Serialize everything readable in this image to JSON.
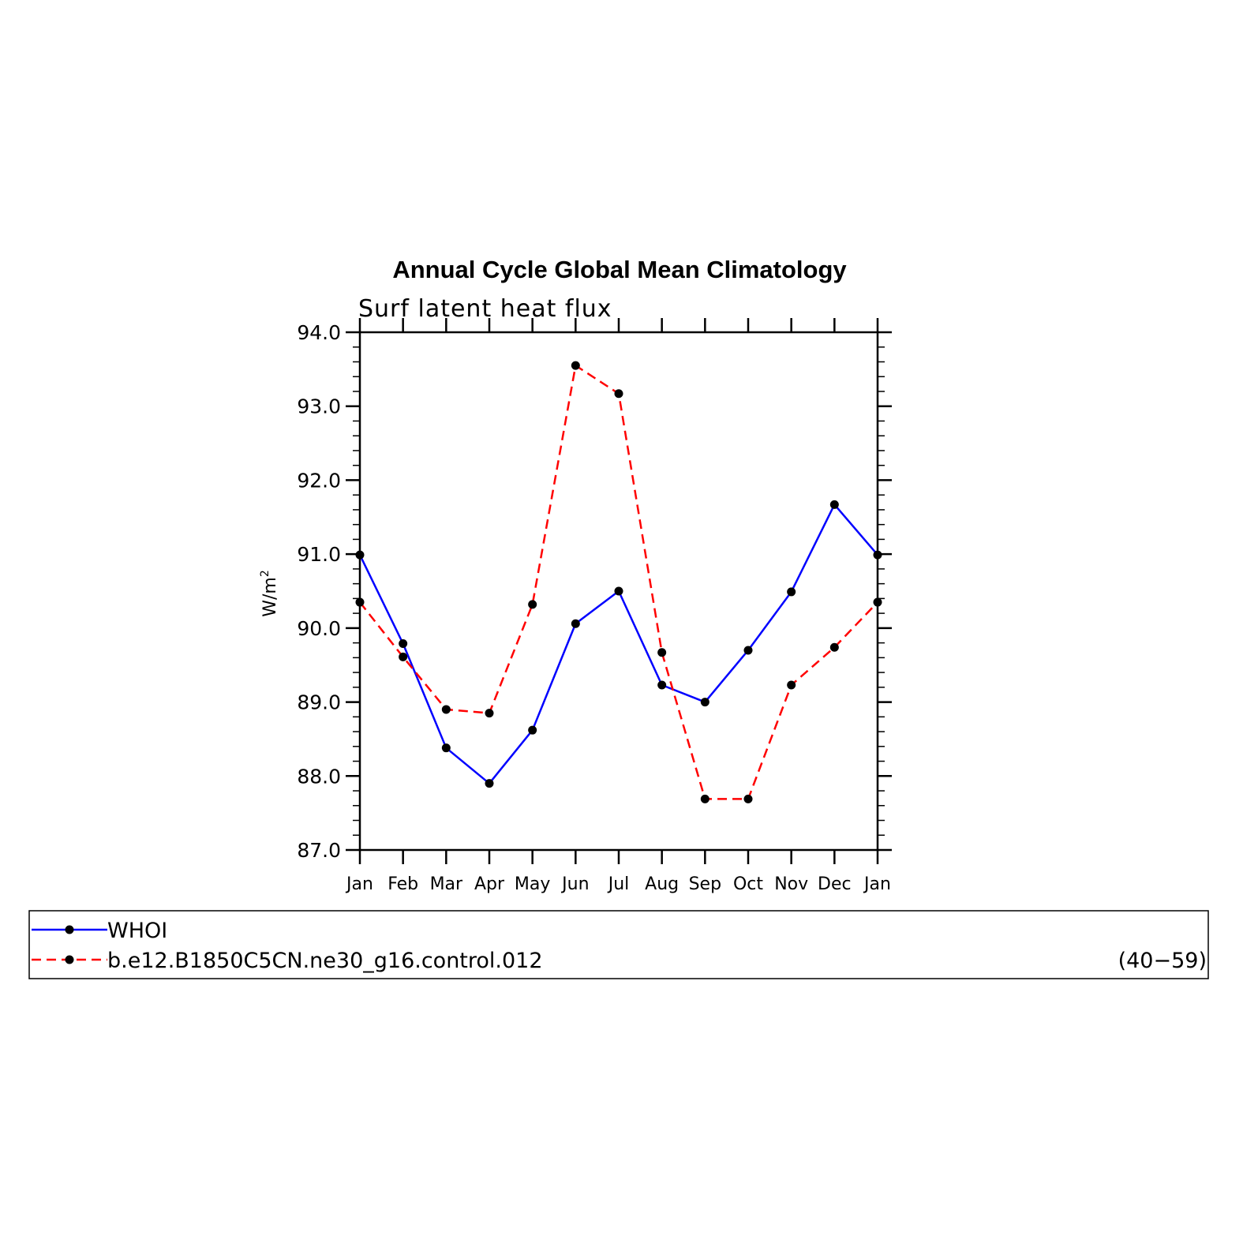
{
  "chart_data": {
    "type": "line",
    "title": "Annual Cycle Global Mean Climatology",
    "subtitle": "Surf latent heat flux",
    "ylabel": "W/m",
    "ylabel_superscript": "2",
    "ylim": [
      87.0,
      94.0
    ],
    "yticks": [
      "87.0",
      "88.0",
      "89.0",
      "90.0",
      "91.0",
      "92.0",
      "93.0",
      "94.0"
    ],
    "categories": [
      "Jan",
      "Feb",
      "Mar",
      "Apr",
      "May",
      "Jun",
      "Jul",
      "Aug",
      "Sep",
      "Oct",
      "Nov",
      "Dec",
      "Jan"
    ],
    "series": [
      {
        "name": "WHOI",
        "color": "#0000ff",
        "dash": "solid",
        "values": [
          90.99,
          89.79,
          88.38,
          87.9,
          88.62,
          90.06,
          90.5,
          89.23,
          89.0,
          89.7,
          90.49,
          91.67,
          90.99
        ]
      },
      {
        "name": "b.e12.B1850C5CN.ne30_g16.control.012",
        "color": "#ff0000",
        "dash": "dashed",
        "values": [
          90.35,
          89.61,
          88.9,
          88.85,
          90.32,
          93.55,
          93.17,
          89.67,
          87.69,
          87.69,
          89.23,
          89.74,
          90.35
        ]
      }
    ],
    "legend_note": "(40−59)",
    "legend_position": "bottom"
  }
}
